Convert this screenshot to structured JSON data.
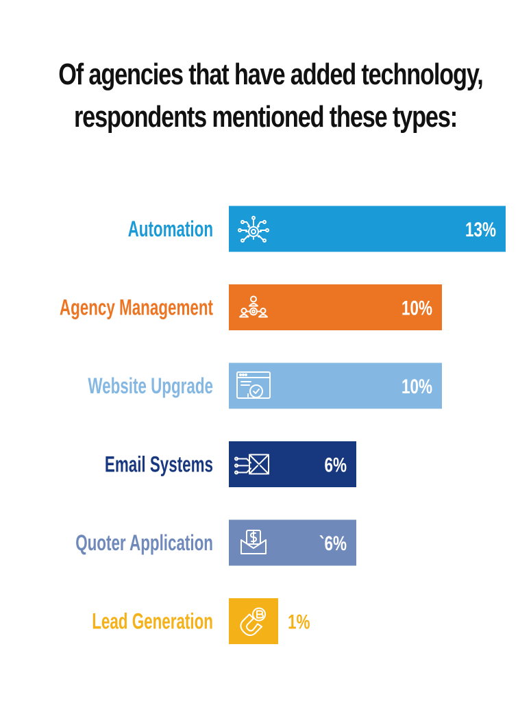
{
  "chart_data": {
    "type": "bar",
    "orientation": "horizontal",
    "title_lines": [
      "Of agencies that have added technology,",
      "respondents mentioned these types:"
    ],
    "categories": [
      "Automation",
      "Agency Management",
      "Website Upgrade",
      "Email Systems",
      "Quoter Application",
      "Lead Generation"
    ],
    "values": [
      13,
      10,
      10,
      6,
      6,
      1
    ],
    "value_labels": [
      "13%",
      "10%",
      "10%",
      "6%",
      "`6%",
      "1%"
    ],
    "colors": [
      "#1a9ad6",
      "#ec7524",
      "#84b8e3",
      "#17377e",
      "#6e89ba",
      "#f4b118"
    ],
    "icons": [
      "automation-network-gear-icon",
      "team-management-icon",
      "website-refresh-icon",
      "email-send-icon",
      "dollar-envelope-icon",
      "magnet-bitcoin-icon"
    ],
    "xlim": [
      0,
      13
    ],
    "grid": false,
    "legend": "none"
  }
}
